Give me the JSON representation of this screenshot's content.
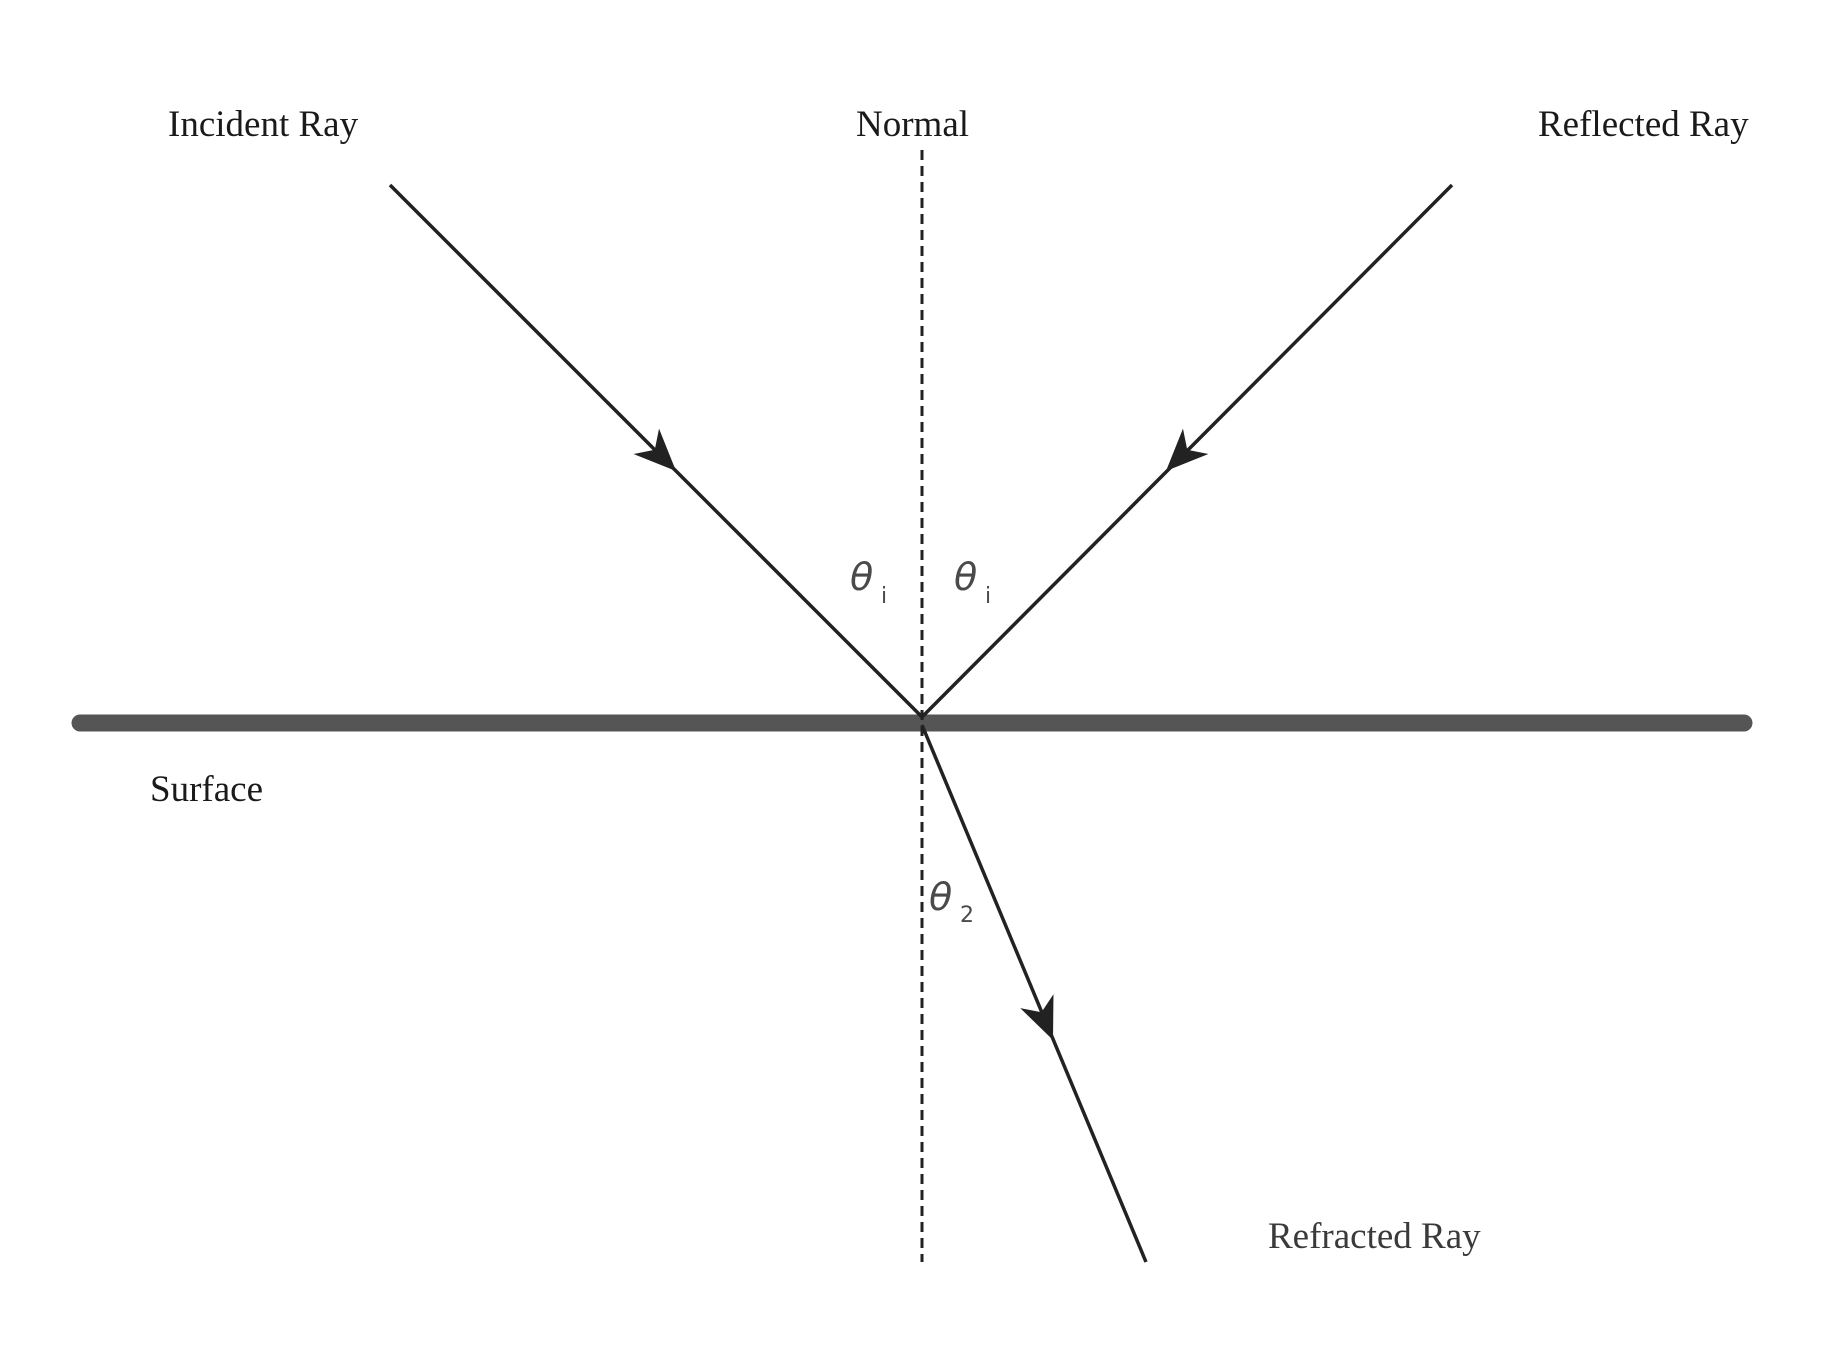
{
  "labels": {
    "incident_ray": "Incident Ray",
    "normal": "Normal",
    "reflected_ray": "Reflected Ray",
    "surface": "Surface",
    "refracted_ray": "Refracted Ray"
  },
  "angles": {
    "incident": {
      "symbol": "θ",
      "subscript": "i"
    },
    "reflected": {
      "symbol": "θ",
      "subscript": "i"
    },
    "refracted": {
      "symbol": "θ",
      "subscript": "2"
    }
  },
  "colors": {
    "ray": "#222222",
    "surface": "#555555",
    "normal": "#222222"
  }
}
